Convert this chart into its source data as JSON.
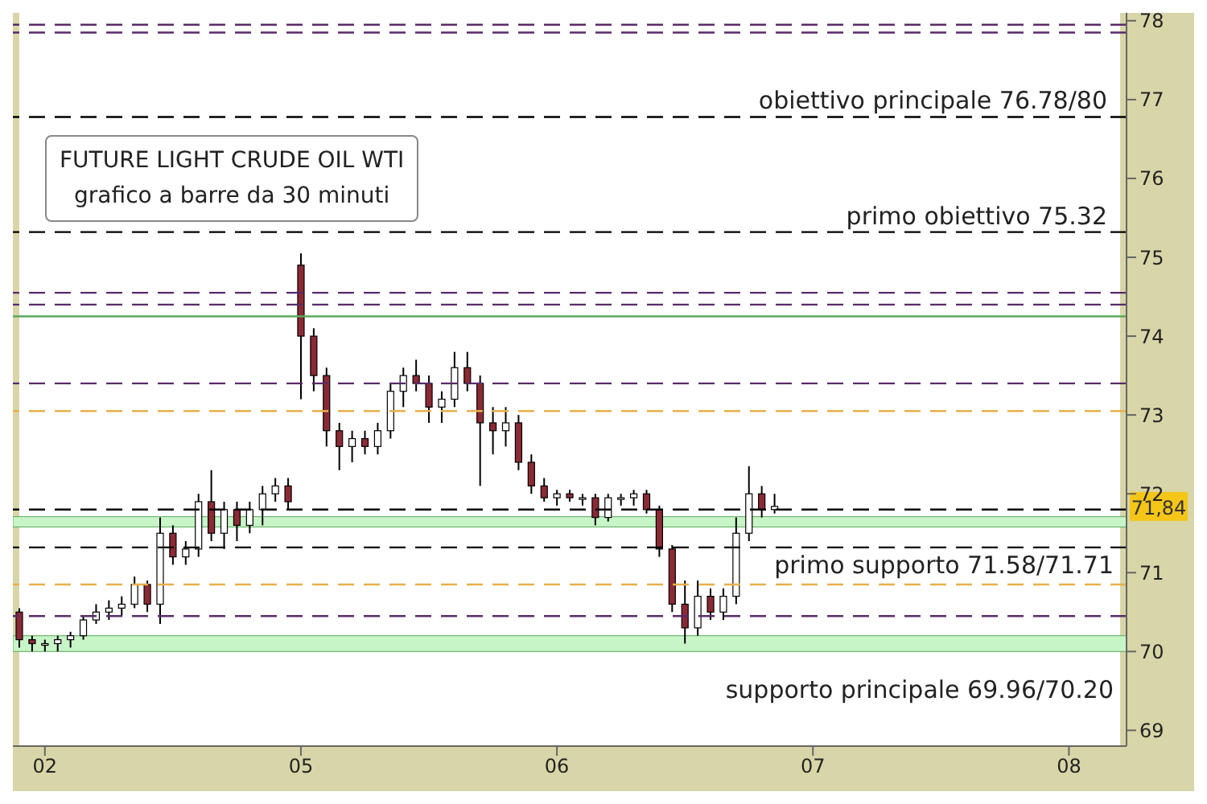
{
  "chart_data": {
    "type": "candlestick",
    "title": "FUTURE LIGHT CRUDE OIL WTI",
    "subtitle": "grafico a barre da 30 minuti",
    "categories": [
      null,
      null,
      "02",
      null,
      null,
      null,
      null,
      null,
      null,
      null,
      null,
      null,
      null,
      null,
      null,
      null,
      null,
      null,
      null,
      null,
      null,
      null,
      "05",
      null,
      null,
      null,
      null,
      null,
      null,
      null,
      null,
      null,
      null,
      null,
      null,
      null,
      null,
      null,
      null,
      null,
      null,
      null,
      "06",
      null,
      null,
      null,
      null,
      null,
      null,
      null,
      null,
      null,
      null,
      null,
      null,
      null,
      null,
      null,
      null,
      null,
      null,
      null,
      "07",
      null,
      null,
      null,
      null,
      null,
      null,
      null,
      null,
      null,
      null,
      null,
      null,
      null,
      null,
      null,
      null,
      null,
      null,
      null,
      "08",
      null,
      null,
      null,
      null
    ],
    "ohlc": [
      [
        70.5,
        70.55,
        70.05,
        70.15
      ],
      [
        70.15,
        70.2,
        70.0,
        70.1
      ],
      [
        70.1,
        70.15,
        70.0,
        70.1
      ],
      [
        70.1,
        70.2,
        70.0,
        70.15
      ],
      [
        70.15,
        70.25,
        70.05,
        70.2
      ],
      [
        70.2,
        70.45,
        70.15,
        70.4
      ],
      [
        70.4,
        70.6,
        70.35,
        70.5
      ],
      [
        70.5,
        70.65,
        70.4,
        70.55
      ],
      [
        70.55,
        70.7,
        70.45,
        70.6
      ],
      [
        70.6,
        70.95,
        70.55,
        70.85
      ],
      [
        70.85,
        70.9,
        70.5,
        70.6
      ],
      [
        70.6,
        71.7,
        70.35,
        71.5
      ],
      [
        71.5,
        71.6,
        71.1,
        71.2
      ],
      [
        71.2,
        71.4,
        71.1,
        71.3
      ],
      [
        71.3,
        72.0,
        71.2,
        71.9
      ],
      [
        71.9,
        72.3,
        71.4,
        71.5
      ],
      [
        71.5,
        71.9,
        71.3,
        71.8
      ],
      [
        71.8,
        71.9,
        71.4,
        71.6
      ],
      [
        71.6,
        71.9,
        71.5,
        71.8
      ],
      [
        71.8,
        72.1,
        71.6,
        72.0
      ],
      [
        72.0,
        72.2,
        71.9,
        72.1
      ],
      [
        72.1,
        72.2,
        71.8,
        71.9
      ],
      [
        74.9,
        75.05,
        73.2,
        74.0
      ],
      [
        74.0,
        74.1,
        73.3,
        73.5
      ],
      [
        73.5,
        73.6,
        72.6,
        72.8
      ],
      [
        72.8,
        72.9,
        72.3,
        72.6
      ],
      [
        72.6,
        72.8,
        72.4,
        72.7
      ],
      [
        72.7,
        72.8,
        72.5,
        72.6
      ],
      [
        72.6,
        72.9,
        72.5,
        72.8
      ],
      [
        72.8,
        73.4,
        72.7,
        73.3
      ],
      [
        73.3,
        73.6,
        73.1,
        73.5
      ],
      [
        73.5,
        73.7,
        73.3,
        73.4
      ],
      [
        73.4,
        73.5,
        72.9,
        73.1
      ],
      [
        73.1,
        73.3,
        72.9,
        73.2
      ],
      [
        73.2,
        73.8,
        73.1,
        73.6
      ],
      [
        73.6,
        73.8,
        73.3,
        73.4
      ],
      [
        73.4,
        73.5,
        72.1,
        72.9
      ],
      [
        72.9,
        73.1,
        72.5,
        72.8
      ],
      [
        72.8,
        73.1,
        72.6,
        72.9
      ],
      [
        72.9,
        73.0,
        72.3,
        72.4
      ],
      [
        72.4,
        72.5,
        72.0,
        72.1
      ],
      [
        72.1,
        72.2,
        71.9,
        71.95
      ],
      [
        71.95,
        72.05,
        71.85,
        72.0
      ],
      [
        72.0,
        72.05,
        71.9,
        71.95
      ],
      [
        71.95,
        72.0,
        71.85,
        71.95
      ],
      [
        71.95,
        72.0,
        71.6,
        71.7
      ],
      [
        71.7,
        72.0,
        71.65,
        71.95
      ],
      [
        71.95,
        72.0,
        71.85,
        71.95
      ],
      [
        71.95,
        72.05,
        71.85,
        72.0
      ],
      [
        72.0,
        72.05,
        71.75,
        71.8
      ],
      [
        71.8,
        71.85,
        71.2,
        71.3
      ],
      [
        71.3,
        71.35,
        70.5,
        70.6
      ],
      [
        70.6,
        70.9,
        70.1,
        70.3
      ],
      [
        70.3,
        70.9,
        70.2,
        70.7
      ],
      [
        70.7,
        70.8,
        70.4,
        70.5
      ],
      [
        70.5,
        70.8,
        70.4,
        70.7
      ],
      [
        70.7,
        71.7,
        70.6,
        71.5
      ],
      [
        71.5,
        72.35,
        71.4,
        72.0
      ],
      [
        72.0,
        72.1,
        71.7,
        71.8
      ],
      [
        71.8,
        72.0,
        71.75,
        71.84
      ],
      null,
      null,
      null,
      null,
      null,
      null,
      null,
      null,
      null,
      null,
      null,
      null,
      null,
      null,
      null,
      null,
      null,
      null,
      null,
      null,
      null,
      null,
      null,
      null,
      null,
      null,
      null
    ],
    "colors": [
      "#8b2a35",
      "#8b2a35",
      "#ffffff",
      "#ffffff",
      "#ffffff",
      "#ffffff",
      "#ffffff",
      "#ffffff",
      "#ffffff",
      "#ffffff",
      "#8b2a35",
      "#ffffff",
      "#8b2a35",
      "#ffffff",
      "#ffffff",
      "#8b2a35",
      "#ffffff",
      "#8b2a35",
      "#ffffff",
      "#ffffff",
      "#ffffff",
      "#8b2a35",
      "#8b2a35",
      "#8b2a35",
      "#8b2a35",
      "#8b2a35",
      "#ffffff",
      "#8b2a35",
      "#ffffff",
      "#ffffff",
      "#ffffff",
      "#8b2a35",
      "#8b2a35",
      "#ffffff",
      "#ffffff",
      "#8b2a35",
      "#8b2a35",
      "#8b2a35",
      "#ffffff",
      "#8b2a35",
      "#8b2a35",
      "#8b2a35",
      "#ffffff",
      "#8b2a35",
      "#ffffff",
      "#8b2a35",
      "#ffffff",
      "#ffffff",
      "#ffffff",
      "#8b2a35",
      "#8b2a35",
      "#8b2a35",
      "#8b2a35",
      "#ffffff",
      "#8b2a35",
      "#ffffff",
      "#ffffff",
      "#ffffff",
      "#8b2a35",
      "#ffffff",
      null,
      null,
      null,
      null,
      null,
      null,
      null,
      null,
      null,
      null,
      null,
      null,
      null,
      null,
      null,
      null,
      null,
      null,
      null,
      null,
      null,
      null,
      null,
      null,
      null,
      null,
      null
    ],
    "ylim": [
      68.8,
      78.1
    ],
    "yticks": [
      69,
      70,
      71,
      72,
      73,
      74,
      75,
      76,
      77,
      78
    ],
    "ref_lines": [
      {
        "axis": "y",
        "value": 76.78,
        "label": "obiettivo principale 76.78/80",
        "color": "#000000",
        "line_style": "dashed"
      },
      {
        "axis": "y",
        "value": 75.32,
        "label": "primo obiettivo 75.32",
        "color": "#000000",
        "line_style": "dashed"
      },
      {
        "axis": "y",
        "value": 71.8,
        "color": "#000000",
        "line_style": "dashed"
      },
      {
        "axis": "y",
        "value": 71.32,
        "color": "#000000",
        "line_style": "dashed"
      },
      {
        "axis": "y",
        "value": 77.95,
        "color": "#5a2a6a",
        "line_style": "dashed"
      },
      {
        "axis": "y",
        "value": 77.85,
        "color": "#5a2a6a",
        "line_style": "dashed"
      },
      {
        "axis": "y",
        "value": 74.55,
        "color": "#5a2a6a",
        "line_style": "dashed"
      },
      {
        "axis": "y",
        "value": 74.4,
        "color": "#5a2a6a",
        "line_style": "dashed"
      },
      {
        "axis": "y",
        "value": 73.4,
        "color": "#5a2a6a",
        "line_style": "dashed"
      },
      {
        "axis": "y",
        "value": 70.45,
        "color": "#5a2a6a",
        "line_style": "dashed"
      },
      {
        "axis": "y",
        "value": 73.05,
        "color": "#e8b04a",
        "line_style": "dashed"
      },
      {
        "axis": "y",
        "value": 70.85,
        "color": "#e8b04a",
        "line_style": "dashed"
      },
      {
        "axis": "y",
        "value": 74.25,
        "color": "#5aaa5a",
        "line_style": "solid"
      }
    ],
    "bands": [
      {
        "axis": "y",
        "from": 71.58,
        "to": 71.71,
        "label": "primo supporto 71.58/71.71",
        "color": "#c8f5c8"
      },
      {
        "axis": "y",
        "from": 70.0,
        "to": 70.2,
        "label": "supporto principale 69.96/70.20",
        "color": "#c8f5c8"
      }
    ],
    "annotations": [
      {
        "text": "71,84",
        "y": 71.84
      }
    ]
  }
}
